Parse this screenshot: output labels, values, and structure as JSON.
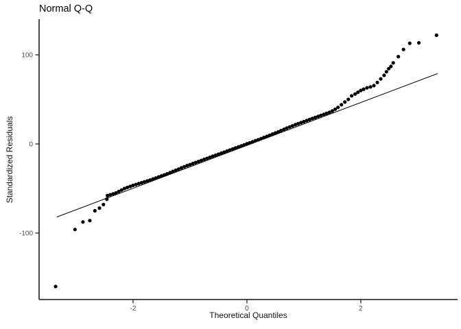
{
  "chart_data": {
    "type": "scatter",
    "title": "Normal Q-Q",
    "xlabel": "Theoretical Quantiles",
    "ylabel": "Standardized Residuals",
    "xlim": [
      -3.65,
      3.7
    ],
    "ylim": [
      -174.6,
      140
    ],
    "x_ticks": [
      -2,
      0,
      2
    ],
    "y_ticks": [
      -100,
      0,
      100
    ],
    "grid": false,
    "legend": "none",
    "point_color": "#000000",
    "reference_line_color": "#000000",
    "axis_color": "#333333",
    "tick_label_color": "#4d4d4d",
    "reference_line": {
      "x1": -3.34,
      "y1": -82,
      "x2": 3.35,
      "y2": 79
    },
    "points": [
      [
        -3.36,
        -160
      ],
      [
        -3.02,
        -96
      ],
      [
        -2.88,
        -87.5
      ],
      [
        -2.76,
        -86
      ],
      [
        -2.67,
        -75
      ],
      [
        -2.59,
        -72
      ],
      [
        -2.52,
        -68
      ],
      [
        -2.46,
        -62
      ],
      [
        -2.45,
        -58
      ],
      [
        -2.4,
        -57
      ],
      [
        -2.35,
        -56
      ],
      [
        -2.3,
        -55
      ],
      [
        -2.25,
        -53.3
      ],
      [
        -2.2,
        -51.7
      ],
      [
        -2.15,
        -50
      ],
      [
        -2.1,
        -48.8
      ],
      [
        -2.05,
        -47.7
      ],
      [
        -2.0,
        -46.5
      ],
      [
        -1.95,
        -45.5
      ],
      [
        -1.9,
        -44.5
      ],
      [
        -1.85,
        -43.5
      ],
      [
        -1.8,
        -42.5
      ],
      [
        -1.75,
        -41.5
      ],
      [
        -1.7,
        -40.5
      ],
      [
        -1.65,
        -39.3
      ],
      [
        -1.6,
        -38.2
      ],
      [
        -1.55,
        -37
      ],
      [
        -1.5,
        -35.8
      ],
      [
        -1.45,
        -34.7
      ],
      [
        -1.4,
        -33.5
      ],
      [
        -1.35,
        -32.2
      ],
      [
        -1.3,
        -30.8
      ],
      [
        -1.25,
        -29.5
      ],
      [
        -1.2,
        -28.2
      ],
      [
        -1.15,
        -26.8
      ],
      [
        -1.1,
        -25.5
      ],
      [
        -1.05,
        -24.3
      ],
      [
        -1.0,
        -23.2
      ],
      [
        -0.95,
        -22
      ],
      [
        -0.9,
        -20.8
      ],
      [
        -0.85,
        -19.7
      ],
      [
        -0.8,
        -18.5
      ],
      [
        -0.75,
        -17.3
      ],
      [
        -0.7,
        -16.2
      ],
      [
        -0.65,
        -15
      ],
      [
        -0.6,
        -13.8
      ],
      [
        -0.55,
        -12.7
      ],
      [
        -0.5,
        -11.5
      ],
      [
        -0.45,
        -10.3
      ],
      [
        -0.4,
        -9.2
      ],
      [
        -0.35,
        -8
      ],
      [
        -0.3,
        -6.8
      ],
      [
        -0.25,
        -5.7
      ],
      [
        -0.2,
        -4.5
      ],
      [
        -0.15,
        -3.3
      ],
      [
        -0.1,
        -2.2
      ],
      [
        -0.05,
        -1
      ],
      [
        0.0,
        0.2
      ],
      [
        0.05,
        1.3
      ],
      [
        0.1,
        2.5
      ],
      [
        0.15,
        3.7
      ],
      [
        0.2,
        4.8
      ],
      [
        0.25,
        6
      ],
      [
        0.3,
        7.3
      ],
      [
        0.35,
        8.5
      ],
      [
        0.4,
        9.8
      ],
      [
        0.45,
        11.1
      ],
      [
        0.5,
        12.3
      ],
      [
        0.55,
        13.6
      ],
      [
        0.6,
        15
      ],
      [
        0.65,
        16.4
      ],
      [
        0.7,
        17.8
      ],
      [
        0.75,
        19.1
      ],
      [
        0.8,
        20.3
      ],
      [
        0.85,
        21.6
      ],
      [
        0.9,
        22.7
      ],
      [
        0.95,
        23.9
      ],
      [
        1.0,
        25
      ],
      [
        1.05,
        26.2
      ],
      [
        1.1,
        27.4
      ],
      [
        1.15,
        28.6
      ],
      [
        1.2,
        29.7
      ],
      [
        1.25,
        30.9
      ],
      [
        1.3,
        32
      ],
      [
        1.35,
        33.2
      ],
      [
        1.4,
        34.3
      ],
      [
        1.45,
        35.5
      ],
      [
        1.5,
        37
      ],
      [
        1.55,
        39
      ],
      [
        1.6,
        41
      ],
      [
        1.66,
        44
      ],
      [
        1.72,
        47
      ],
      [
        1.78,
        50
      ],
      [
        1.84,
        54
      ],
      [
        1.9,
        56
      ],
      [
        1.95,
        58
      ],
      [
        2.0,
        60
      ],
      [
        2.05,
        61.5
      ],
      [
        2.11,
        63
      ],
      [
        2.17,
        64
      ],
      [
        2.23,
        65.5
      ],
      [
        2.29,
        69
      ],
      [
        2.35,
        73
      ],
      [
        2.41,
        77
      ],
      [
        2.45,
        81
      ],
      [
        2.49,
        84.5
      ],
      [
        2.53,
        87
      ],
      [
        2.57,
        91
      ],
      [
        2.66,
        98
      ],
      [
        2.75,
        106
      ],
      [
        2.86,
        113
      ],
      [
        3.02,
        113.5
      ],
      [
        3.33,
        122
      ]
    ]
  }
}
